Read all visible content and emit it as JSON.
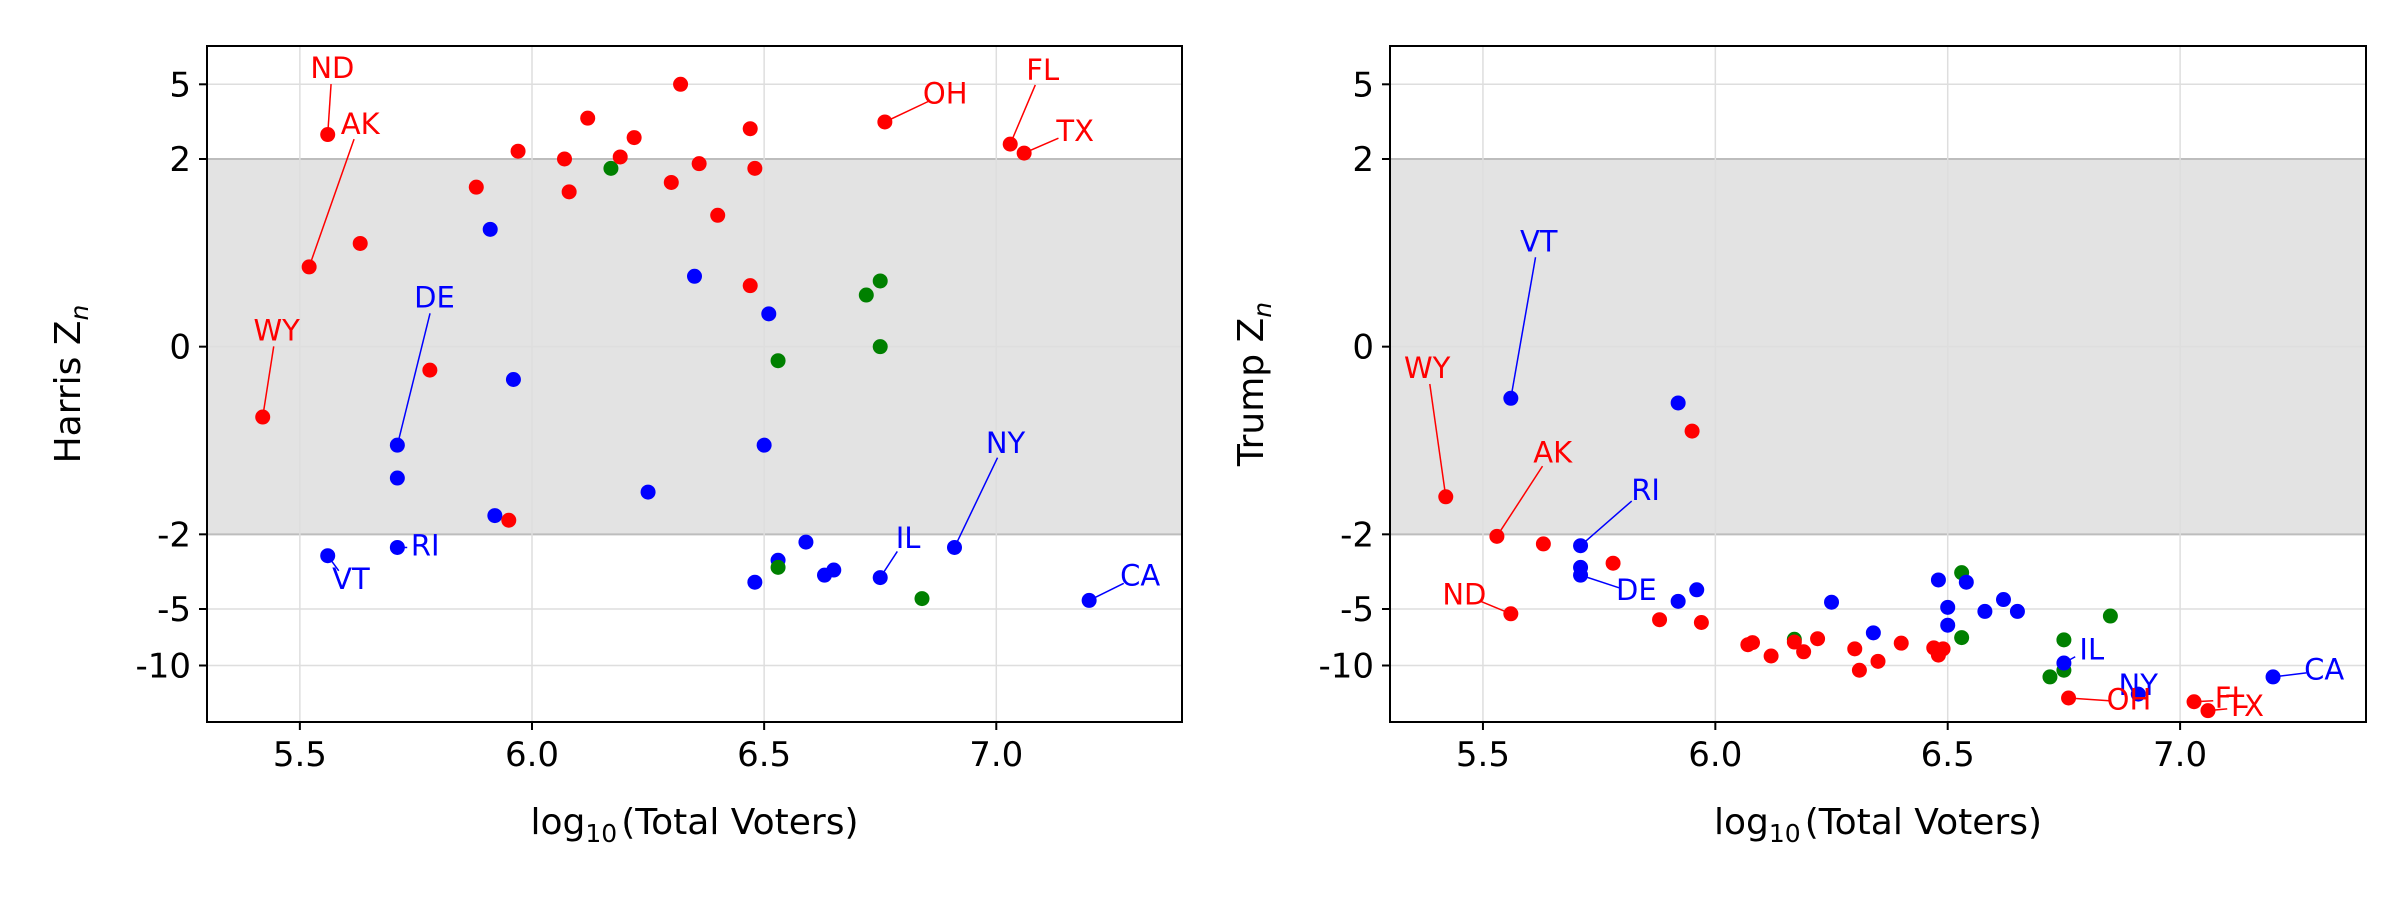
{
  "chart_data": [
    {
      "type": "scatter",
      "xlabel_main": "log",
      "xlabel_sub": "10",
      "xlabel_rest": "(Total Voters)",
      "ylabel_main": "Harris Z",
      "ylabel_sub": "n",
      "xlim": [
        5.3,
        7.4
      ],
      "x_ticks": [
        5.5,
        6.0,
        6.5,
        7.0
      ],
      "x_tick_labels": [
        "5.5",
        "6.0",
        "6.5",
        "7.0"
      ],
      "y_scale": "symlog",
      "y_ticks": [
        5,
        2,
        0,
        -2,
        -5,
        -10
      ],
      "y_tick_labels": [
        "5",
        "2",
        "0",
        "-2",
        "-5",
        "-10"
      ],
      "ylim": [
        -20,
        8
      ],
      "band": [
        -2,
        2
      ],
      "band_color": "#e3e3e3",
      "grid": true,
      "colors": {
        "red": "#ff0000",
        "blue": "#0000ff",
        "green": "#008000"
      },
      "points": [
        {
          "x": 5.42,
          "y": -0.75,
          "c": "red"
        },
        {
          "x": 5.52,
          "y": 0.85,
          "c": "red"
        },
        {
          "x": 5.56,
          "y": 2.7,
          "c": "red"
        },
        {
          "x": 5.63,
          "y": 1.1,
          "c": "red"
        },
        {
          "x": 5.56,
          "y": -2.6,
          "c": "blue"
        },
        {
          "x": 5.71,
          "y": -1.4,
          "c": "blue"
        },
        {
          "x": 5.71,
          "y": -1.05,
          "c": "blue"
        },
        {
          "x": 5.71,
          "y": -2.35,
          "c": "blue"
        },
        {
          "x": 5.78,
          "y": -0.25,
          "c": "red"
        },
        {
          "x": 5.88,
          "y": 1.7,
          "c": "red"
        },
        {
          "x": 5.91,
          "y": 1.25,
          "c": "blue"
        },
        {
          "x": 5.92,
          "y": -1.8,
          "c": "blue"
        },
        {
          "x": 5.95,
          "y": -1.85,
          "c": "red"
        },
        {
          "x": 5.96,
          "y": -0.35,
          "c": "blue"
        },
        {
          "x": 5.97,
          "y": 2.2,
          "c": "red"
        },
        {
          "x": 6.07,
          "y": 2.0,
          "c": "red"
        },
        {
          "x": 6.08,
          "y": 1.65,
          "c": "red"
        },
        {
          "x": 6.12,
          "y": 3.3,
          "c": "red"
        },
        {
          "x": 6.17,
          "y": 1.9,
          "c": "green"
        },
        {
          "x": 6.19,
          "y": 2.05,
          "c": "red"
        },
        {
          "x": 6.22,
          "y": 2.6,
          "c": "red"
        },
        {
          "x": 6.25,
          "y": -1.55,
          "c": "blue"
        },
        {
          "x": 6.3,
          "y": 1.75,
          "c": "red"
        },
        {
          "x": 6.32,
          "y": 5.0,
          "c": "red"
        },
        {
          "x": 6.35,
          "y": 0.75,
          "c": "blue"
        },
        {
          "x": 6.36,
          "y": 1.95,
          "c": "red"
        },
        {
          "x": 6.4,
          "y": 1.4,
          "c": "red"
        },
        {
          "x": 6.47,
          "y": 0.65,
          "c": "red"
        },
        {
          "x": 6.47,
          "y": 2.9,
          "c": "red"
        },
        {
          "x": 6.48,
          "y": 1.9,
          "c": "red"
        },
        {
          "x": 6.48,
          "y": -3.6,
          "c": "blue"
        },
        {
          "x": 6.5,
          "y": -1.05,
          "c": "blue"
        },
        {
          "x": 6.51,
          "y": 0.35,
          "c": "blue"
        },
        {
          "x": 6.53,
          "y": -0.15,
          "c": "green"
        },
        {
          "x": 6.53,
          "y": -2.75,
          "c": "blue"
        },
        {
          "x": 6.53,
          "y": -3.0,
          "c": "green"
        },
        {
          "x": 6.59,
          "y": -2.2,
          "c": "blue"
        },
        {
          "x": 6.63,
          "y": -3.3,
          "c": "blue"
        },
        {
          "x": 6.65,
          "y": -3.1,
          "c": "blue"
        },
        {
          "x": 6.72,
          "y": 0.55,
          "c": "green"
        },
        {
          "x": 6.75,
          "y": 0.7,
          "c": "green"
        },
        {
          "x": 6.75,
          "y": 0.0,
          "c": "green"
        },
        {
          "x": 6.75,
          "y": -3.4,
          "c": "blue"
        },
        {
          "x": 6.76,
          "y": 3.15,
          "c": "red"
        },
        {
          "x": 6.84,
          "y": -4.4,
          "c": "green"
        },
        {
          "x": 6.91,
          "y": -2.35,
          "c": "blue"
        },
        {
          "x": 7.03,
          "y": 2.4,
          "c": "red"
        },
        {
          "x": 7.06,
          "y": 2.15,
          "c": "red"
        },
        {
          "x": 7.2,
          "y": -4.5,
          "c": "blue"
        }
      ],
      "labels": [
        {
          "text": "ND",
          "x": 5.56,
          "y": 2.7,
          "c": "red",
          "lx": 5.57,
          "ly": 5.95
        },
        {
          "text": "AK",
          "x": 5.52,
          "y": 0.85,
          "c": "red",
          "lx": 5.63,
          "ly": 3.0
        },
        {
          "text": "WY",
          "x": 5.42,
          "y": -0.75,
          "c": "red",
          "lx": 5.45,
          "ly": 0.15
        },
        {
          "text": "DE",
          "x": 5.71,
          "y": -1.05,
          "c": "blue",
          "lx": 5.79,
          "ly": 0.5
        },
        {
          "text": "RI",
          "x": 5.71,
          "y": -2.35,
          "c": "blue",
          "lx": 5.77,
          "ly": -2.35
        },
        {
          "text": "VT",
          "x": 5.56,
          "y": -2.6,
          "c": "blue",
          "lx": 5.61,
          "ly": -3.55
        },
        {
          "text": "OH",
          "x": 6.76,
          "y": 3.15,
          "c": "red",
          "lx": 6.89,
          "ly": 4.35
        },
        {
          "text": "FL",
          "x": 7.03,
          "y": 2.4,
          "c": "red",
          "lx": 7.1,
          "ly": 5.8
        },
        {
          "text": "TX",
          "x": 7.06,
          "y": 2.15,
          "c": "red",
          "lx": 7.17,
          "ly": 2.75
        },
        {
          "text": "IL",
          "x": 6.75,
          "y": -3.4,
          "c": "blue",
          "lx": 6.81,
          "ly": -2.15
        },
        {
          "text": "NY",
          "x": 6.91,
          "y": -2.35,
          "c": "blue",
          "lx": 7.02,
          "ly": -1.05
        },
        {
          "text": "CA",
          "x": 7.2,
          "y": -4.5,
          "c": "blue",
          "lx": 7.31,
          "ly": -3.4
        }
      ]
    },
    {
      "type": "scatter",
      "xlabel_main": "log",
      "xlabel_sub": "10",
      "xlabel_rest": "(Total Voters)",
      "ylabel_main": "Trump Z",
      "ylabel_sub": "n",
      "xlim": [
        5.3,
        7.4
      ],
      "x_ticks": [
        5.5,
        6.0,
        6.5,
        7.0
      ],
      "x_tick_labels": [
        "5.5",
        "6.0",
        "6.5",
        "7.0"
      ],
      "y_scale": "symlog",
      "y_ticks": [
        5,
        2,
        0,
        -2,
        -5,
        -10
      ],
      "y_tick_labels": [
        "5",
        "2",
        "0",
        "-2",
        "-5",
        "-10"
      ],
      "ylim": [
        -20,
        8
      ],
      "band": [
        -2,
        2
      ],
      "band_color": "#e3e3e3",
      "grid": true,
      "colors": {
        "red": "#ff0000",
        "blue": "#0000ff",
        "green": "#008000"
      },
      "points": [
        {
          "x": 5.42,
          "y": -1.6,
          "c": "red"
        },
        {
          "x": 5.53,
          "y": -2.05,
          "c": "red"
        },
        {
          "x": 5.56,
          "y": -0.55,
          "c": "blue"
        },
        {
          "x": 5.56,
          "y": -5.3,
          "c": "red"
        },
        {
          "x": 5.63,
          "y": -2.25,
          "c": "red"
        },
        {
          "x": 5.71,
          "y": -2.3,
          "c": "blue"
        },
        {
          "x": 5.71,
          "y": -3.0,
          "c": "blue"
        },
        {
          "x": 5.71,
          "y": -3.3,
          "c": "blue"
        },
        {
          "x": 5.78,
          "y": -2.85,
          "c": "red"
        },
        {
          "x": 5.88,
          "y": -5.7,
          "c": "red"
        },
        {
          "x": 5.92,
          "y": -4.55,
          "c": "blue"
        },
        {
          "x": 5.92,
          "y": -0.6,
          "c": "blue"
        },
        {
          "x": 5.95,
          "y": -0.9,
          "c": "red"
        },
        {
          "x": 5.96,
          "y": -3.95,
          "c": "blue"
        },
        {
          "x": 5.97,
          "y": -5.9,
          "c": "red"
        },
        {
          "x": 6.07,
          "y": -7.75,
          "c": "red"
        },
        {
          "x": 6.08,
          "y": -7.55,
          "c": "red"
        },
        {
          "x": 6.12,
          "y": -8.9,
          "c": "red"
        },
        {
          "x": 6.17,
          "y": -7.25,
          "c": "green"
        },
        {
          "x": 6.17,
          "y": -7.5,
          "c": "red"
        },
        {
          "x": 6.19,
          "y": -8.45,
          "c": "red"
        },
        {
          "x": 6.22,
          "y": -7.2,
          "c": "red"
        },
        {
          "x": 6.25,
          "y": -4.6,
          "c": "blue"
        },
        {
          "x": 6.3,
          "y": -8.15,
          "c": "red"
        },
        {
          "x": 6.31,
          "y": -10.6,
          "c": "red"
        },
        {
          "x": 6.34,
          "y": -6.7,
          "c": "blue"
        },
        {
          "x": 6.35,
          "y": -9.5,
          "c": "red"
        },
        {
          "x": 6.4,
          "y": -7.6,
          "c": "red"
        },
        {
          "x": 6.47,
          "y": -8.05,
          "c": "red"
        },
        {
          "x": 6.48,
          "y": -8.8,
          "c": "red"
        },
        {
          "x": 6.48,
          "y": -3.5,
          "c": "blue"
        },
        {
          "x": 6.49,
          "y": -8.15,
          "c": "red"
        },
        {
          "x": 6.5,
          "y": -4.9,
          "c": "blue"
        },
        {
          "x": 6.5,
          "y": -6.1,
          "c": "blue"
        },
        {
          "x": 6.53,
          "y": -3.2,
          "c": "green"
        },
        {
          "x": 6.53,
          "y": -7.1,
          "c": "green"
        },
        {
          "x": 6.54,
          "y": -3.6,
          "c": "blue"
        },
        {
          "x": 6.58,
          "y": -5.15,
          "c": "blue"
        },
        {
          "x": 6.62,
          "y": -4.45,
          "c": "blue"
        },
        {
          "x": 6.65,
          "y": -5.15,
          "c": "blue"
        },
        {
          "x": 6.72,
          "y": -11.5,
          "c": "green"
        },
        {
          "x": 6.75,
          "y": -10.6,
          "c": "green"
        },
        {
          "x": 6.75,
          "y": -7.3,
          "c": "green"
        },
        {
          "x": 6.75,
          "y": -9.7,
          "c": "blue"
        },
        {
          "x": 6.76,
          "y": -14.9,
          "c": "red"
        },
        {
          "x": 6.85,
          "y": -5.45,
          "c": "green"
        },
        {
          "x": 6.91,
          "y": -14.2,
          "c": "blue"
        },
        {
          "x": 7.03,
          "y": -15.6,
          "c": "red"
        },
        {
          "x": 7.06,
          "y": -17.4,
          "c": "red"
        },
        {
          "x": 7.2,
          "y": -11.5,
          "c": "blue"
        }
      ],
      "labels": [
        {
          "text": "VT",
          "x": 5.56,
          "y": -0.55,
          "c": "blue",
          "lx": 5.62,
          "ly": 1.1
        },
        {
          "text": "WY",
          "x": 5.42,
          "y": -1.6,
          "c": "red",
          "lx": 5.38,
          "ly": -0.25
        },
        {
          "text": "AK",
          "x": 5.53,
          "y": -2.05,
          "c": "red",
          "lx": 5.65,
          "ly": -1.15
        },
        {
          "text": "RI",
          "x": 5.71,
          "y": -2.3,
          "c": "blue",
          "lx": 5.85,
          "ly": -1.55
        },
        {
          "text": "DE",
          "x": 5.71,
          "y": -3.3,
          "c": "blue",
          "lx": 5.83,
          "ly": -4.05
        },
        {
          "text": "ND",
          "x": 5.56,
          "y": -5.3,
          "c": "red",
          "lx": 5.46,
          "ly": -4.3
        },
        {
          "text": "IL",
          "x": 6.75,
          "y": -9.7,
          "c": "blue",
          "lx": 6.81,
          "ly": -8.4
        },
        {
          "text": "NY",
          "x": 6.91,
          "y": -14.2,
          "c": "blue",
          "lx": 6.91,
          "ly": -13.0
        },
        {
          "text": "OH",
          "x": 6.76,
          "y": -14.9,
          "c": "red",
          "lx": 6.89,
          "ly": -15.6
        },
        {
          "text": "FL",
          "x": 7.03,
          "y": -15.6,
          "c": "red",
          "lx": 7.11,
          "ly": -15.3
        },
        {
          "text": "TX",
          "x": 7.06,
          "y": -17.4,
          "c": "red",
          "lx": 7.14,
          "ly": -16.8
        },
        {
          "text": "CA",
          "x": 7.2,
          "y": -11.5,
          "c": "blue",
          "lx": 7.31,
          "ly": -10.75
        }
      ]
    }
  ]
}
